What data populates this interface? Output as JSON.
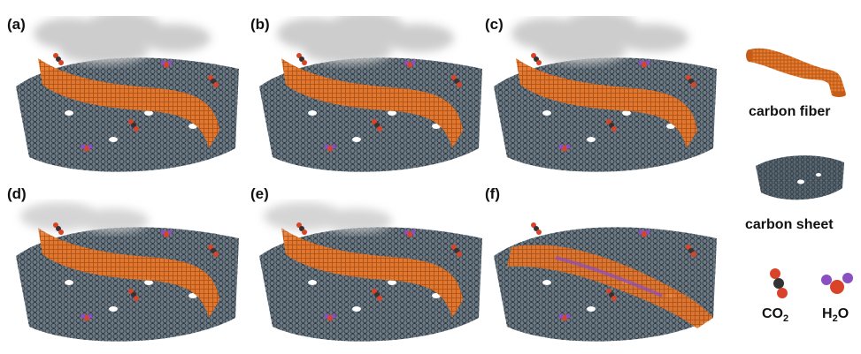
{
  "panels": [
    {
      "label": "(a)"
    },
    {
      "label": "(b)"
    },
    {
      "label": "(c)"
    },
    {
      "label": "(d)"
    },
    {
      "label": "(e)"
    },
    {
      "label": "(f)"
    }
  ],
  "legend": {
    "fiber_label": "carbon fiber",
    "sheet_label": "carbon sheet",
    "co2_main": "CO",
    "co2_sub": "2",
    "h2o_main": "H",
    "h2o_sub": "2",
    "h2o_end": "O"
  },
  "colors": {
    "fiber": "#e8782a",
    "sheet": "#3d4a55",
    "smoke": "#c8c8c8",
    "oxygen": "#d9432a",
    "carbon": "#333333",
    "h2o_purple": "#8a4fc0"
  }
}
